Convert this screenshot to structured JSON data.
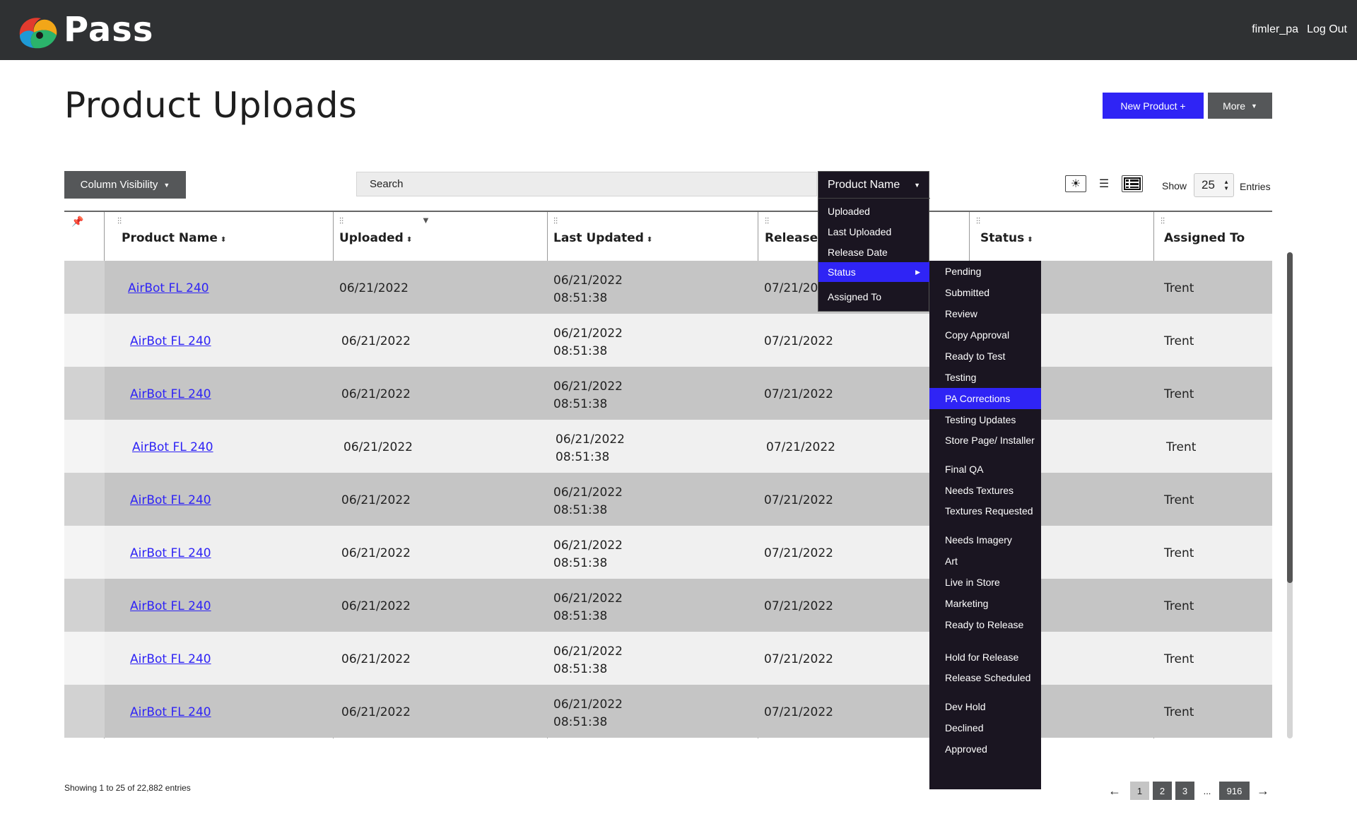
{
  "app": {
    "brand": "Pass",
    "user": "fimler_pa",
    "logout": "Log Out"
  },
  "page": {
    "title": "Product Uploads",
    "new_button": "New Product +",
    "more_button": "More"
  },
  "controls": {
    "column_visibility": "Column Visibility",
    "search_placeholder": "Search",
    "show_label": "Show",
    "entries_value": "25",
    "entries_label": "Entries"
  },
  "table": {
    "headers": [
      "Product Name",
      "Uploaded",
      "Last Updated",
      "Release D",
      "Status",
      "Assigned To"
    ],
    "rows": [
      {
        "name": "AirBot FL 240",
        "uploaded": "06/21/2022",
        "updated_date": "06/21/2022",
        "updated_time": "08:51:38",
        "release": "07/21/202",
        "assigned": "Trent"
      },
      {
        "name": "AirBot FL 240",
        "uploaded": "06/21/2022",
        "updated_date": "06/21/2022",
        "updated_time": "08:51:38",
        "release": "07/21/2022",
        "assigned": "Trent"
      },
      {
        "name": "AirBot FL 240",
        "uploaded": "06/21/2022",
        "updated_date": "06/21/2022",
        "updated_time": "08:51:38",
        "release": "07/21/2022",
        "assigned": "Trent"
      },
      {
        "name": "AirBot FL 240",
        "uploaded": "06/21/2022",
        "updated_date": "06/21/2022",
        "updated_time": "08:51:38",
        "release": "07/21/2022",
        "assigned": "Trent"
      },
      {
        "name": "AirBot FL 240",
        "uploaded": "06/21/2022",
        "updated_date": "06/21/2022",
        "updated_time": "08:51:38",
        "release": "07/21/2022",
        "assigned": "Trent"
      },
      {
        "name": "AirBot FL 240",
        "uploaded": "06/21/2022",
        "updated_date": "06/21/2022",
        "updated_time": "08:51:38",
        "release": "07/21/2022",
        "assigned": "Trent"
      },
      {
        "name": "AirBot FL 240",
        "uploaded": "06/21/2022",
        "updated_date": "06/21/2022",
        "updated_time": "08:51:38",
        "release": "07/21/2022",
        "assigned": "Trent"
      },
      {
        "name": "AirBot FL 240",
        "uploaded": "06/21/2022",
        "updated_date": "06/21/2022",
        "updated_time": "08:51:38",
        "release": "07/21/2022",
        "assigned": "Trent"
      },
      {
        "name": "AirBot FL 240",
        "uploaded": "06/21/2022",
        "updated_date": "06/21/2022",
        "updated_time": "08:51:38",
        "release": "07/21/2022",
        "assigned": "Trent"
      }
    ]
  },
  "dropdown": {
    "selected": "Product Name",
    "items": [
      "Uploaded",
      "Last Uploaded",
      "Release Date",
      "Status",
      "Assigned To"
    ],
    "active_item": "Status"
  },
  "status_submenu": {
    "items": [
      "Pending",
      "Submitted",
      "Review",
      "Copy Approval",
      "Ready to Test",
      "Testing",
      "PA Corrections",
      "Testing Updates",
      "Store Page/ Installer",
      "Final QA",
      "Needs Textures",
      "Textures Requested",
      "Needs Imagery",
      "Art",
      "Live in Store",
      "Marketing",
      "Ready to Release",
      "Hold for Release",
      "Release Scheduled",
      "Dev Hold",
      "Declined",
      "Approved"
    ],
    "active_item": "PA Corrections"
  },
  "footer": {
    "showing": "Showing 1 to 25 of 22,882 entries",
    "pages": [
      "1",
      "2",
      "3",
      "...",
      "916"
    ],
    "current_page": "1"
  },
  "colors": {
    "accent": "#2f24f5",
    "topbar": "#2f3133",
    "menu_bg": "#1a1521",
    "row_dark": "#c5c5c5",
    "row_light": "#f0f0f0"
  }
}
